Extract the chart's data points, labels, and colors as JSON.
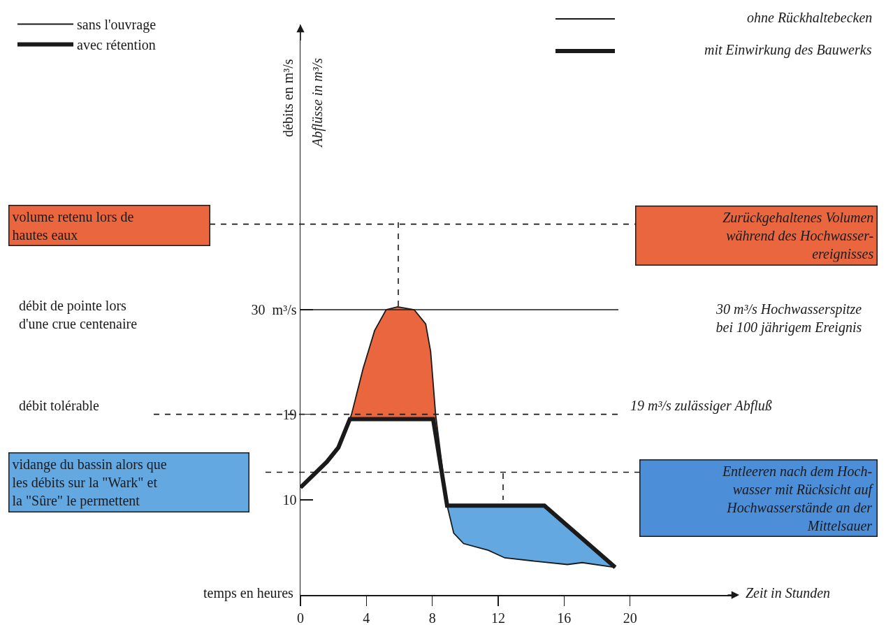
{
  "chart_data": {
    "type": "line",
    "xlabel": "temps en heures",
    "ylabel": "débits en m³/s",
    "x": [
      0,
      1.6,
      2.3,
      3.0,
      3.1,
      3.8,
      4.5,
      5.2,
      5.9,
      6.9,
      7.6,
      7.9,
      8.2,
      8.9,
      9.3,
      9.9,
      11.4,
      12.4,
      14.5,
      16.2,
      17.1,
      19.1
    ],
    "series": [
      {
        "name": "sans l'ouvrage",
        "color": "#1a1a1a",
        "values": [
          11.3,
          14.0,
          15.5,
          18.5,
          19,
          23.8,
          27.8,
          30.0,
          30.3,
          30.0,
          28.5,
          25.6,
          19,
          9.4,
          6.5,
          5.4,
          4.7,
          3.9,
          3.5,
          3.2,
          3.4,
          2.9
        ]
      },
      {
        "name": "avec rétention",
        "color": "#1a1a1a",
        "x": [
          0,
          1.6,
          2.3,
          3.0,
          8.05,
          8.9,
          14.8,
          19.1
        ],
        "values": [
          11.3,
          14.0,
          15.5,
          18.5,
          18.5,
          9.4,
          9.4,
          2.9
        ]
      }
    ],
    "xlim": [
      0,
      26.5
    ],
    "xticks": [
      0,
      4,
      8,
      12,
      16,
      20
    ],
    "ylim": [
      0,
      60
    ],
    "yticks": [
      10,
      19,
      {
        "value": 30,
        "label": "30  m³/s"
      }
    ],
    "ref_lines": [
      {
        "axis": "y",
        "value": 39,
        "line_style": "dashed"
      },
      {
        "axis": "y",
        "value": 30,
        "line_style": "solid"
      },
      {
        "axis": "y",
        "value": 19,
        "line_style": "dashed"
      },
      {
        "axis": "y",
        "value": 12.9,
        "line_style": "dashed"
      }
    ],
    "annotations": [
      "volume retenu lors de\nhautes eaux",
      "Zurückgehaltenes Volumen\nwährend des Hochwasser-\nereignisses",
      "débit de pointe lors\nd'une crue centenaire",
      "30 m³/s Hochwasserspitze\nbei 100 jährigem Ereignis",
      "débit tolérable",
      "19 m³/s zulässiger Abfluß",
      "vidange du bassin alors que\nles débits sur la \"Wark\" et\nla \"Sûre\" le permettent",
      "Entleeren nach dem Hoch-\nwasser mit Rücksicht auf\nHochwasserstände an der\nMittelsauer",
      "Abflüsse in m³/s",
      "Zeit in Stunden",
      "ohne Rückhaltebecken",
      "mit Einwirkung des Bauwerks"
    ],
    "grid": false,
    "legend": "top left"
  }
}
